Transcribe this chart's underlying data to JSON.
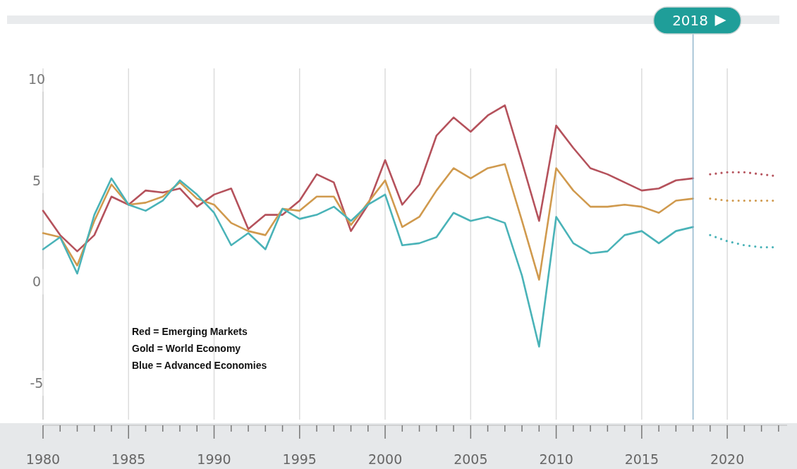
{
  "chart_data": {
    "type": "line",
    "x": [
      1980,
      1981,
      1982,
      1983,
      1984,
      1985,
      1986,
      1987,
      1988,
      1989,
      1990,
      1991,
      1992,
      1993,
      1994,
      1995,
      1996,
      1997,
      1998,
      1999,
      2000,
      2001,
      2002,
      2003,
      2004,
      2005,
      2006,
      2007,
      2008,
      2009,
      2010,
      2011,
      2012,
      2013,
      2014,
      2015,
      2016,
      2017,
      2018
    ],
    "series": [
      {
        "color": "#b5525c",
        "line_style": "solid",
        "values": [
          3.5,
          2.3,
          1.5,
          2.3,
          4.2,
          3.8,
          4.5,
          4.4,
          4.6,
          3.7,
          4.3,
          4.6,
          2.6,
          3.3,
          3.3,
          4.0,
          5.3,
          4.9,
          2.5,
          3.8,
          6.0,
          3.8,
          4.8,
          7.2,
          8.1,
          7.4,
          8.2,
          8.7,
          5.9,
          3.0,
          7.7,
          6.6,
          5.6,
          5.3,
          4.9,
          4.5,
          4.6,
          5.0,
          5.1
        ]
      },
      {
        "color": "#d09a4e",
        "line_style": "solid",
        "values": [
          2.4,
          2.2,
          0.8,
          3.0,
          4.8,
          3.8,
          3.9,
          4.2,
          4.9,
          4.1,
          3.8,
          2.9,
          2.5,
          2.3,
          3.6,
          3.5,
          4.2,
          4.2,
          2.8,
          3.9,
          5.0,
          2.7,
          3.2,
          4.5,
          5.6,
          5.1,
          5.6,
          5.8,
          3.0,
          0.1,
          5.6,
          4.5,
          3.7,
          3.7,
          3.8,
          3.7,
          3.4,
          4.0,
          4.1
        ]
      },
      {
        "color": "#4ab3b8",
        "line_style": "solid",
        "values": [
          1.6,
          2.2,
          0.4,
          3.3,
          5.1,
          3.8,
          3.5,
          4.0,
          5.0,
          4.3,
          3.4,
          1.8,
          2.4,
          1.6,
          3.6,
          3.1,
          3.3,
          3.7,
          3.0,
          3.8,
          4.3,
          1.8,
          1.9,
          2.2,
          3.4,
          3.0,
          3.2,
          2.9,
          0.3,
          -3.2,
          3.2,
          1.9,
          1.4,
          1.5,
          2.3,
          2.5,
          1.9,
          2.5,
          2.7
        ]
      },
      {
        "color": "#b5525c",
        "line_style": "dotted",
        "x": [
          2019,
          2020,
          2021,
          2022,
          2023
        ],
        "values": [
          5.3,
          5.4,
          5.4,
          5.3,
          5.2
        ]
      },
      {
        "color": "#d09a4e",
        "line_style": "dotted",
        "x": [
          2019,
          2020,
          2021,
          2022,
          2023
        ],
        "values": [
          4.1,
          4.0,
          4.0,
          4.0,
          4.0
        ]
      },
      {
        "color": "#4ab3b8",
        "line_style": "dotted",
        "x": [
          2019,
          2020,
          2021,
          2022,
          2023
        ],
        "values": [
          2.3,
          2.0,
          1.8,
          1.7,
          1.7
        ]
      }
    ],
    "xlim": [
      1980,
      2023.5
    ],
    "xticks": [
      1980,
      {
        "value": 1981,
        "label": null
      },
      {
        "value": 1982,
        "label": null
      },
      {
        "value": 1983,
        "label": null
      },
      {
        "value": 1984,
        "label": null
      },
      1985,
      {
        "value": 1986,
        "label": null
      },
      {
        "value": 1987,
        "label": null
      },
      {
        "value": 1988,
        "label": null
      },
      {
        "value": 1989,
        "label": null
      },
      1990,
      {
        "value": 1991,
        "label": null
      },
      {
        "value": 1992,
        "label": null
      },
      {
        "value": 1993,
        "label": null
      },
      {
        "value": 1994,
        "label": null
      },
      1995,
      {
        "value": 1996,
        "label": null
      },
      {
        "value": 1997,
        "label": null
      },
      {
        "value": 1998,
        "label": null
      },
      {
        "value": 1999,
        "label": null
      },
      2000,
      {
        "value": 2001,
        "label": null
      },
      {
        "value": 2002,
        "label": null
      },
      {
        "value": 2003,
        "label": null
      },
      {
        "value": 2004,
        "label": null
      },
      2005,
      {
        "value": 2006,
        "label": null
      },
      {
        "value": 2007,
        "label": null
      },
      {
        "value": 2008,
        "label": null
      },
      {
        "value": 2009,
        "label": null
      },
      2010,
      {
        "value": 2011,
        "label": null
      },
      {
        "value": 2012,
        "label": null
      },
      {
        "value": 2013,
        "label": null
      },
      {
        "value": 2014,
        "label": null
      },
      2015,
      {
        "value": 2016,
        "label": null
      },
      {
        "value": 2017,
        "label": null
      },
      {
        "value": 2018,
        "label": null
      },
      {
        "value": 2019,
        "label": null
      },
      2020,
      {
        "value": 2021,
        "label": null
      },
      {
        "value": 2022,
        "label": null
      },
      {
        "value": 2023,
        "label": null
      }
    ],
    "ylim": [
      -6.8,
      10.5
    ],
    "yticks": [
      -5,
      0,
      5,
      10
    ],
    "grid": "x",
    "marker": "none",
    "ref_lines": [
      {
        "axis": "x",
        "value": 2018,
        "label": "2018",
        "color": "#7fa9c4"
      }
    ],
    "annotations": [
      "Red = Emerging Markets",
      "Gold = World Economy",
      "Blue = Advanced Economies"
    ]
  }
}
